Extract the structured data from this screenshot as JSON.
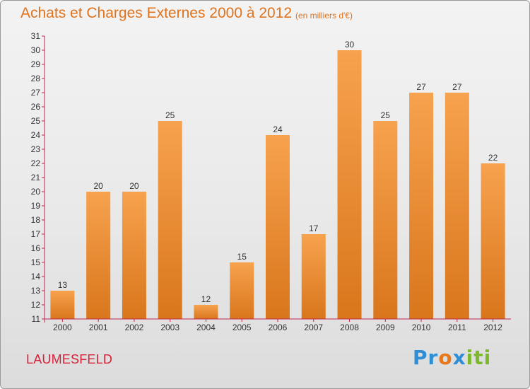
{
  "header": {
    "title": "Achats et Charges Externes 2000 à 2012",
    "subtitle": "(en milliers d'€)"
  },
  "footer": {
    "location": "LAUMESFELD",
    "brand": "Proxiti"
  },
  "colors": {
    "bar_light": "#f7a24e",
    "bar_dark": "#d9761c",
    "axis": "#c0254d",
    "text": "#333333",
    "accent": "#e0731d"
  },
  "chart_data": {
    "type": "bar",
    "title": "Achats et Charges Externes 2000 à 2012",
    "subtitle": "(en milliers d'€)",
    "xlabel": "",
    "ylabel": "",
    "categories": [
      "2000",
      "2001",
      "2002",
      "2003",
      "2004",
      "2005",
      "2006",
      "2007",
      "2008",
      "2009",
      "2010",
      "2011",
      "2012"
    ],
    "values": [
      13,
      20,
      20,
      25,
      12,
      15,
      24,
      17,
      30,
      25,
      27,
      27,
      22
    ],
    "ylim": [
      11,
      31
    ],
    "yticks": [
      11,
      12,
      13,
      14,
      15,
      16,
      17,
      18,
      19,
      20,
      21,
      22,
      23,
      24,
      25,
      26,
      27,
      28,
      29,
      30,
      31
    ],
    "grid": false,
    "legend": "none"
  }
}
